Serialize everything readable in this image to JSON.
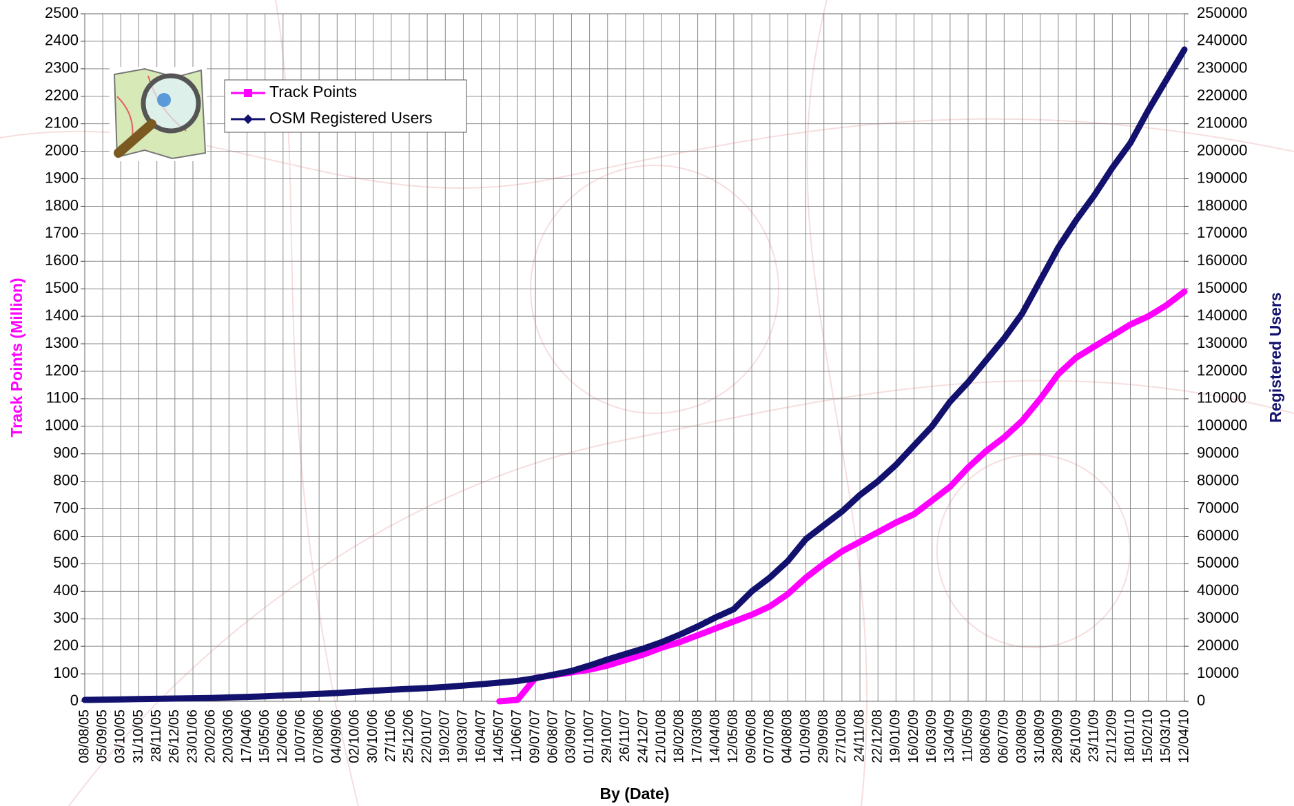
{
  "chart_data": {
    "type": "line",
    "x_label": "By (Date)",
    "y_label": "Track Points (Million)",
    "y2_label": "Registered Users",
    "categories": [
      "08/08/05",
      "05/09/05",
      "03/10/05",
      "31/10/05",
      "28/11/05",
      "26/12/05",
      "23/01/06",
      "20/02/06",
      "20/03/06",
      "17/04/06",
      "15/05/06",
      "12/06/06",
      "10/07/06",
      "07/08/06",
      "04/09/06",
      "02/10/06",
      "30/10/06",
      "27/11/06",
      "25/12/06",
      "22/01/07",
      "19/02/07",
      "19/03/07",
      "16/04/07",
      "14/05/07",
      "11/06/07",
      "09/07/07",
      "06/08/07",
      "03/09/07",
      "01/10/07",
      "29/10/07",
      "26/11/07",
      "24/12/07",
      "21/01/08",
      "18/02/08",
      "17/03/08",
      "14/04/08",
      "12/05/08",
      "09/06/08",
      "07/07/08",
      "04/08/08",
      "01/09/08",
      "29/09/08",
      "27/10/08",
      "24/11/08",
      "22/12/08",
      "19/01/09",
      "16/02/09",
      "16/03/09",
      "13/04/09",
      "11/05/09",
      "08/06/09",
      "06/07/09",
      "03/08/09",
      "31/08/09",
      "28/09/09",
      "26/10/09",
      "23/11/09",
      "21/12/09",
      "18/01/10",
      "15/02/10",
      "15/03/10",
      "12/04/10"
    ],
    "series": [
      {
        "name": "Track Points",
        "color": "#ff00ff",
        "marker": "square",
        "values": [
          null,
          null,
          null,
          null,
          null,
          null,
          null,
          null,
          null,
          null,
          null,
          null,
          null,
          null,
          null,
          null,
          null,
          null,
          null,
          null,
          null,
          null,
          null,
          0,
          5,
          85,
          95,
          105,
          115,
          130,
          150,
          170,
          195,
          215,
          240,
          265,
          290,
          315,
          345,
          390,
          450,
          500,
          545,
          580,
          615,
          650,
          680,
          730,
          780,
          850,
          910,
          960,
          1020,
          1100,
          1190,
          1250,
          1290,
          1330,
          1370,
          1400,
          1440,
          1490
        ]
      },
      {
        "name": "OSM Registered Users",
        "color": "#12126e",
        "marker": "diamond",
        "axis": "y2",
        "values": [
          500,
          600,
          700,
          800,
          900,
          1000,
          1100,
          1200,
          1400,
          1600,
          1800,
          2100,
          2400,
          2700,
          3000,
          3400,
          3800,
          4200,
          4500,
          4800,
          5200,
          5700,
          6200,
          6800,
          7400,
          8400,
          9700,
          11000,
          13000,
          15200,
          17200,
          19200,
          21500,
          24200,
          27200,
          30500,
          33500,
          40000,
          45000,
          51000,
          59000,
          64000,
          69000,
          75000,
          80000,
          86000,
          93000,
          100000,
          109000,
          116000,
          124000,
          132000,
          141000,
          153000,
          165000,
          175000,
          184000,
          194000,
          203000,
          215000,
          226000,
          237000
        ]
      }
    ],
    "ylim": [
      0,
      2500
    ],
    "yticks": [
      0,
      100,
      200,
      300,
      400,
      500,
      600,
      700,
      800,
      900,
      1000,
      1100,
      1200,
      1300,
      1400,
      1500,
      1600,
      1700,
      1800,
      1900,
      2000,
      2100,
      2200,
      2300,
      2400,
      2500
    ],
    "y2lim": [
      0,
      250000
    ],
    "y2ticks": [
      0,
      10000,
      20000,
      30000,
      40000,
      50000,
      60000,
      70000,
      80000,
      90000,
      100000,
      110000,
      120000,
      130000,
      140000,
      150000,
      160000,
      170000,
      180000,
      190000,
      200000,
      210000,
      220000,
      230000,
      240000,
      250000
    ],
    "grid": true,
    "legend": "upper left",
    "y_label_color": "#ff00ff",
    "y2_label_color": "#12126e"
  }
}
